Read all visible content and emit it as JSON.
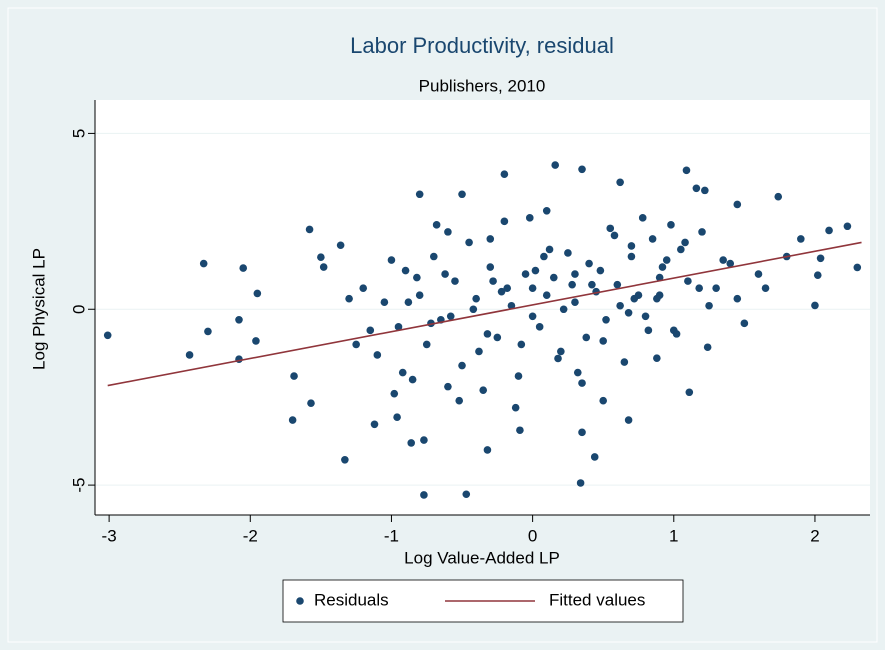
{
  "chart_data": {
    "type": "scatter",
    "title": "Labor Productivity, residual",
    "subtitle": "Publishers, 2010",
    "x_label": "Log Value-Added LP",
    "y_label": "Log Physical LP",
    "xlim": [
      -3.1,
      2.39
    ],
    "xticks": [
      -3,
      -2,
      -1,
      0,
      1,
      2
    ],
    "ylim": [
      -5.85,
      5.95
    ],
    "yticks": [
      -5,
      0,
      5
    ],
    "grid": true,
    "legend": "bottom",
    "series": [
      {
        "name": "Residuals",
        "mode": "markers",
        "color": "#1a476f",
        "x": [
          -3.01,
          -2.43,
          -2.33,
          -2.3,
          -2.05,
          -2.08,
          -2.08,
          -1.95,
          -1.96,
          -1.7,
          -1.69,
          -1.58,
          -1.57,
          -1.5,
          -1.48,
          -1.33,
          -1.36,
          -0.77,
          -0.47,
          -0.8,
          -0.5,
          -0.2,
          0.16,
          0.35,
          0.34,
          0.62,
          1.09,
          1.16,
          1.22,
          1.45,
          1.74,
          2.0,
          2.02,
          2.04,
          2.23,
          2.3,
          2.1,
          1.11,
          1.24,
          0.88,
          0.68,
          0.44,
          0.35,
          -0.09,
          -0.32,
          -0.77,
          -0.86,
          -1.12,
          -0.96,
          -1.2,
          -1.1,
          -1.05,
          -0.95,
          -0.9,
          -0.85,
          -0.8,
          -0.75,
          -0.7,
          -0.65,
          -0.6,
          -0.55,
          -0.5,
          -0.45,
          -0.4,
          -0.35,
          -0.3,
          -0.25,
          -0.2,
          -0.15,
          -0.1,
          -0.05,
          0.0,
          0.05,
          0.1,
          0.15,
          0.2,
          0.25,
          0.3,
          0.35,
          0.4,
          0.45,
          0.5,
          0.55,
          0.6,
          0.65,
          0.7,
          0.75,
          0.8,
          0.85,
          0.9,
          0.95,
          1.0,
          1.05,
          1.1,
          1.2,
          1.3,
          1.4,
          1.5,
          1.6,
          1.8,
          1.9,
          -1.15,
          -1.0,
          -0.92,
          -0.82,
          -0.72,
          -0.62,
          -0.52,
          -0.42,
          -0.32,
          -0.22,
          -0.12,
          -0.02,
          0.08,
          0.18,
          0.28,
          0.38,
          0.48,
          0.58,
          0.68,
          0.78,
          0.88,
          0.98,
          1.08,
          1.18,
          1.35,
          -0.98,
          -0.88,
          -0.68,
          -0.58,
          -0.38,
          -0.28,
          -0.18,
          -0.08,
          0.02,
          0.12,
          0.22,
          0.32,
          0.42,
          0.52,
          0.62,
          0.72,
          0.82,
          0.92,
          1.02,
          -1.3,
          -1.25,
          -0.6,
          -0.3,
          0.0,
          0.1,
          0.3,
          0.5,
          0.7,
          0.9,
          1.25,
          1.45,
          1.65
        ],
        "values": [
          -0.74,
          -1.3,
          1.3,
          -0.63,
          1.17,
          -0.3,
          -1.42,
          0.45,
          -0.9,
          -3.15,
          -1.9,
          2.27,
          -2.67,
          1.48,
          1.2,
          -4.28,
          1.82,
          -5.28,
          -5.26,
          3.27,
          3.27,
          3.84,
          4.1,
          3.98,
          -4.94,
          3.61,
          3.95,
          3.44,
          3.38,
          2.98,
          3.2,
          0.11,
          0.97,
          1.45,
          2.36,
          1.19,
          2.24,
          -2.36,
          -1.08,
          -1.39,
          -3.15,
          -4.2,
          -3.5,
          -3.44,
          -4.0,
          -3.72,
          -3.8,
          -3.27,
          -3.07,
          0.6,
          -1.3,
          0.2,
          -0.5,
          1.1,
          -2.0,
          0.4,
          -1.0,
          1.5,
          -0.3,
          2.2,
          0.8,
          -1.6,
          1.9,
          0.3,
          -2.3,
          1.2,
          -0.8,
          2.5,
          0.1,
          -1.9,
          1.0,
          0.6,
          -0.5,
          2.8,
          0.9,
          -1.2,
          1.6,
          0.2,
          -2.1,
          1.3,
          0.5,
          -0.9,
          2.3,
          0.7,
          -1.5,
          1.8,
          0.4,
          -0.2,
          2.0,
          0.9,
          1.4,
          -0.6,
          1.7,
          0.8,
          2.2,
          0.6,
          1.3,
          -0.4,
          1.0,
          1.5,
          2.0,
          -0.6,
          1.4,
          -1.8,
          0.9,
          -0.4,
          1.0,
          -2.6,
          0.0,
          -0.7,
          0.5,
          -2.8,
          2.6,
          1.5,
          -1.4,
          0.7,
          -0.8,
          1.1,
          2.1,
          -0.1,
          2.6,
          0.3,
          2.4,
          1.9,
          0.6,
          1.4,
          -2.4,
          0.2,
          2.4,
          -0.2,
          -1.2,
          0.8,
          0.6,
          -1.0,
          1.1,
          1.7,
          0.0,
          -1.8,
          0.7,
          -0.3,
          0.1,
          0.3,
          -0.6,
          1.2,
          -0.7,
          0.3,
          -1.0,
          -2.2,
          2.0,
          -0.2,
          0.4,
          1.0,
          -2.6,
          1.5,
          0.4,
          0.1,
          0.3,
          0.6
        ]
      },
      {
        "name": "Fitted values",
        "mode": "line",
        "color": "#90353b",
        "x": [
          -3.01,
          2.33
        ],
        "values": [
          -2.17,
          1.9
        ]
      }
    ]
  }
}
